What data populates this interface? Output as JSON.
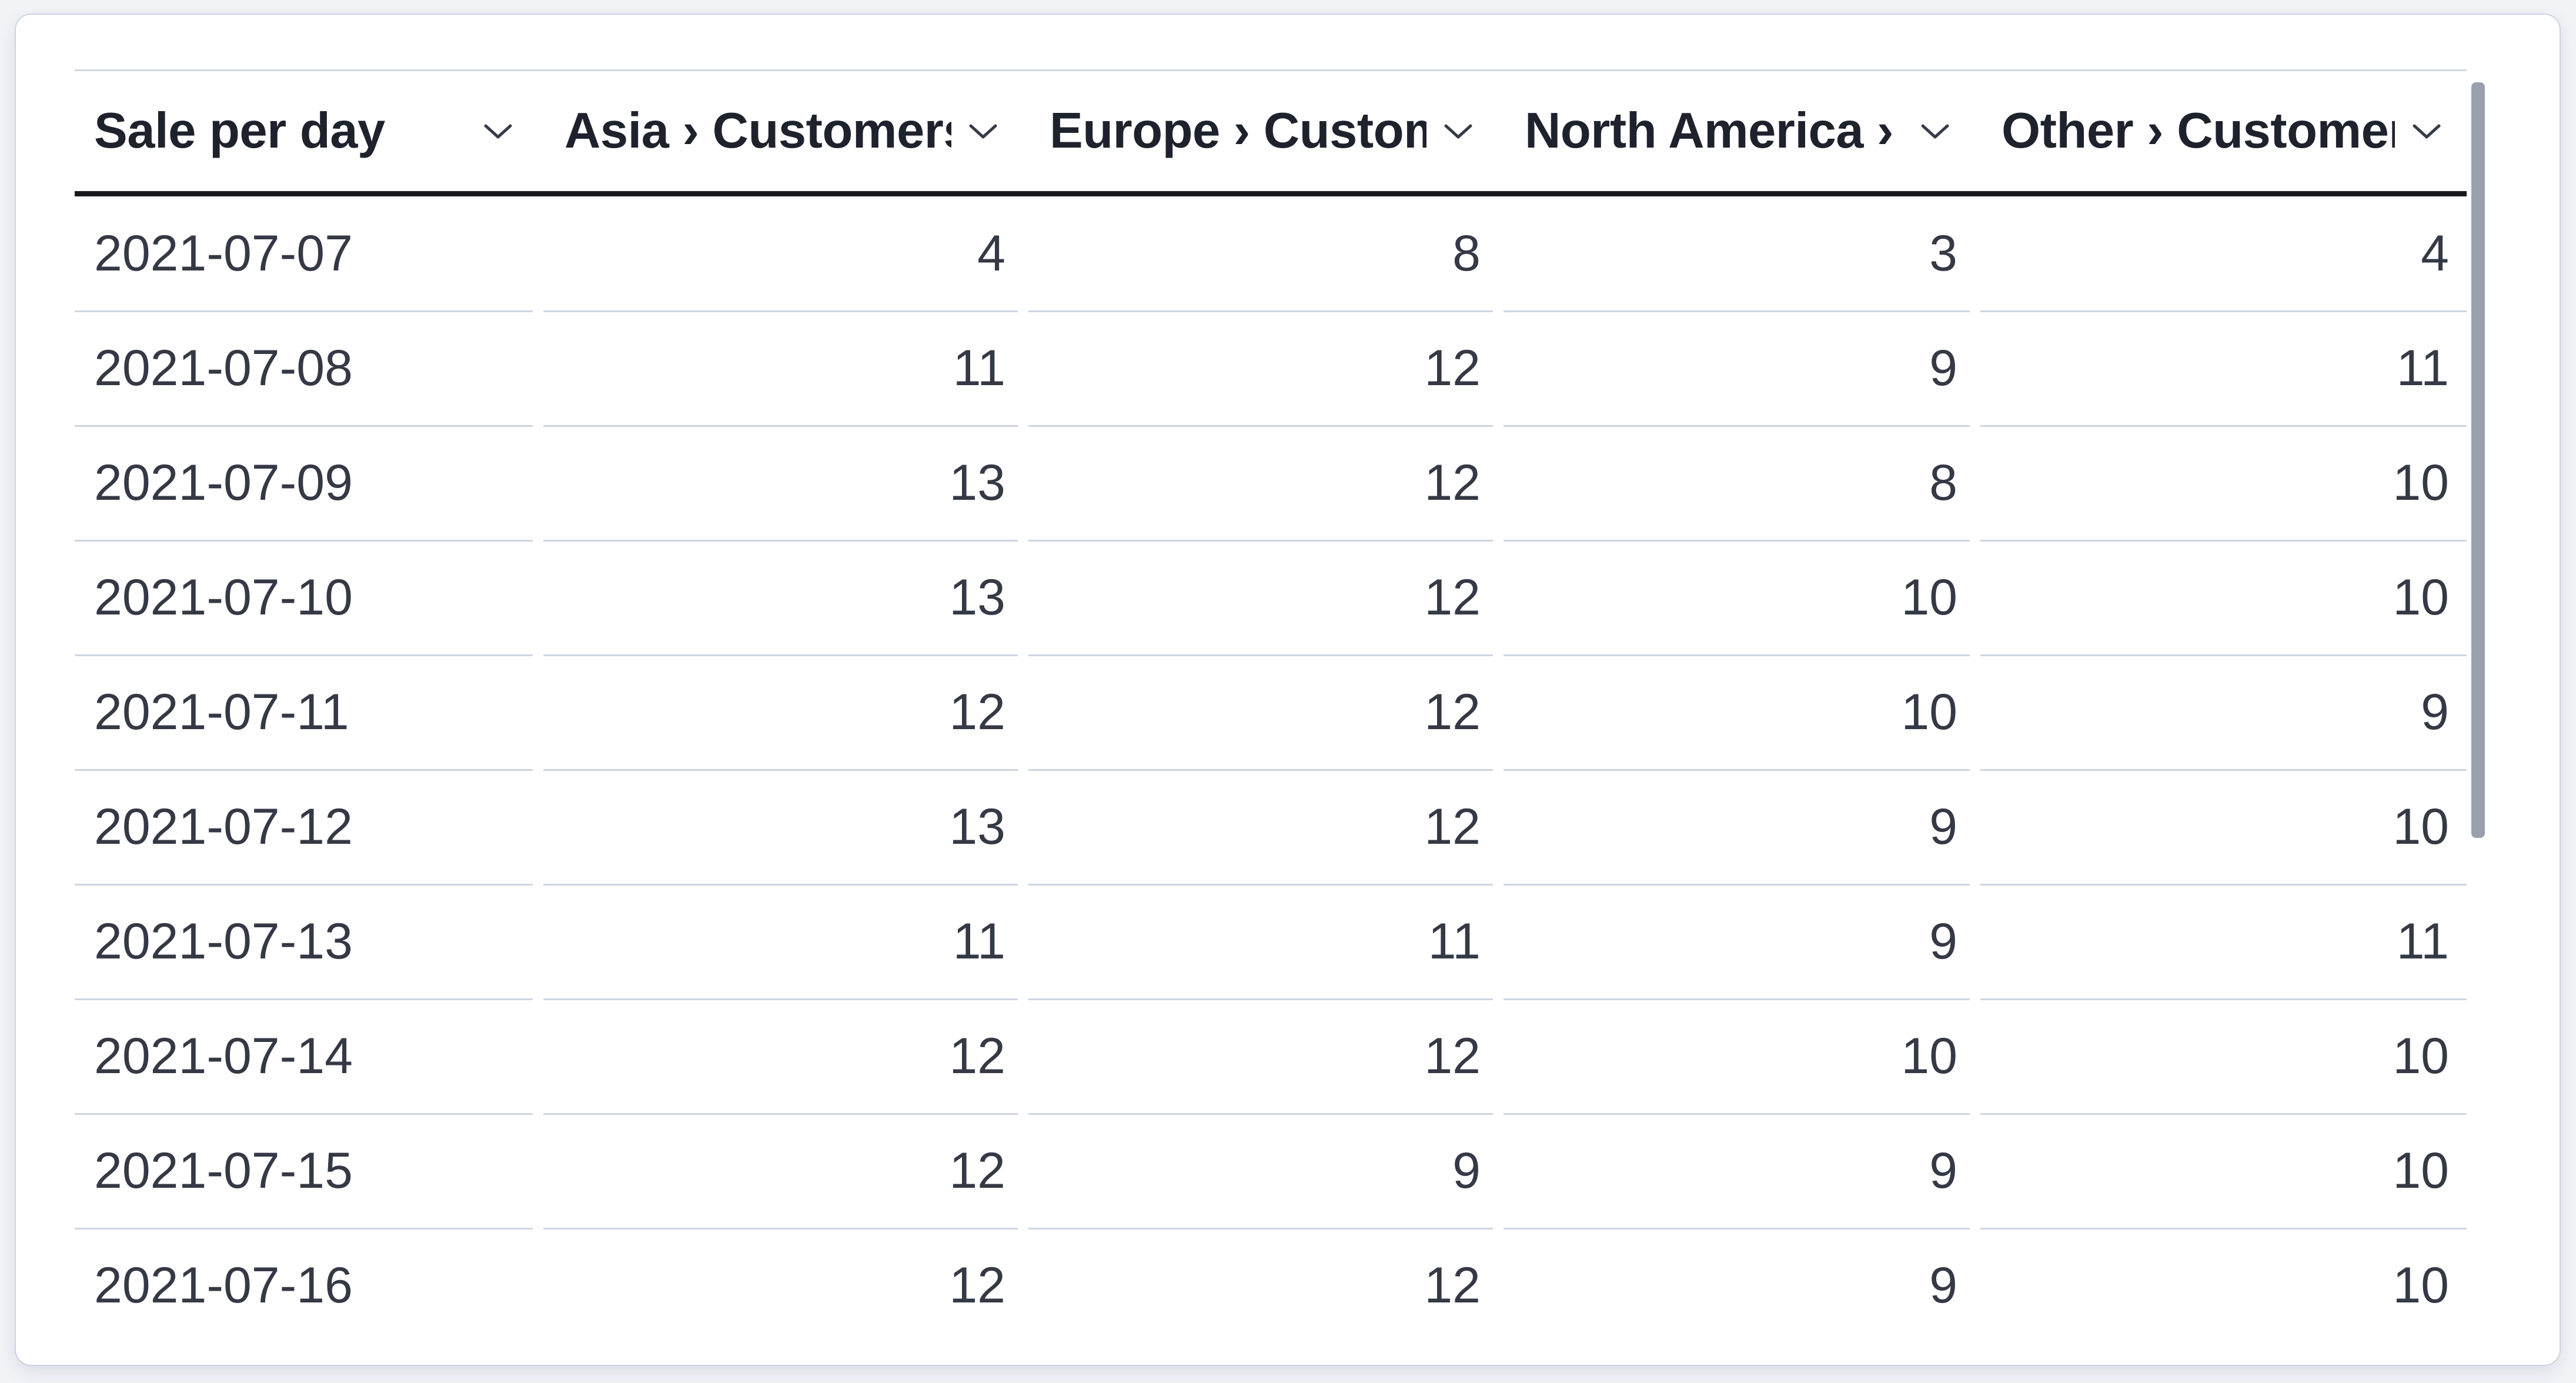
{
  "app": {
    "component": "sales-data-table-card"
  },
  "colors": {
    "page_bg": "#f1f3f7",
    "card_bg": "#ffffff",
    "card_border": "#cbd4e1",
    "table_top_border": "#cfd8e4",
    "header_divider": "#16181d",
    "row_separator": "#ccd5e3",
    "header_text": "#1e222c",
    "cell_text": "#343945",
    "chevron": "#353b48",
    "scrollbar_thumb": "#9aa0ab"
  },
  "icons": {
    "column_menu": "chevron-down-icon"
  },
  "table": {
    "columns": [
      {
        "label": "Sale per day",
        "align": "left"
      },
      {
        "label": "Asia › Customers",
        "align": "right"
      },
      {
        "label": "Europe › Customers",
        "align": "right"
      },
      {
        "label": "North America › Customers",
        "align": "right"
      },
      {
        "label": "Other › Customers",
        "align": "right"
      }
    ],
    "rows": [
      [
        "2021-07-07",
        4,
        8,
        3,
        4
      ],
      [
        "2021-07-08",
        11,
        12,
        9,
        11
      ],
      [
        "2021-07-09",
        13,
        12,
        8,
        10
      ],
      [
        "2021-07-10",
        13,
        12,
        10,
        10
      ],
      [
        "2021-07-11",
        12,
        12,
        10,
        9
      ],
      [
        "2021-07-12",
        13,
        12,
        9,
        10
      ],
      [
        "2021-07-13",
        11,
        11,
        9,
        11
      ],
      [
        "2021-07-14",
        12,
        12,
        10,
        10
      ],
      [
        "2021-07-15",
        12,
        9,
        9,
        10
      ],
      [
        "2021-07-16",
        12,
        12,
        9,
        10
      ]
    ]
  },
  "scrollbar": {
    "orientation": "vertical"
  }
}
